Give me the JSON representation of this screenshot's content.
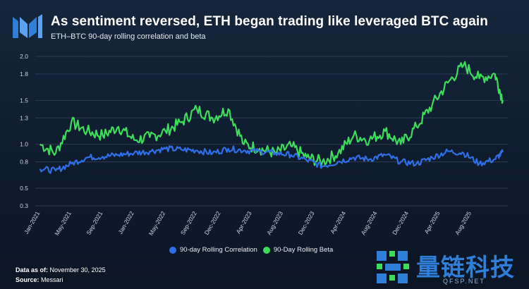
{
  "header": {
    "title": "As sentiment reversed, ETH began trading like leveraged BTC again",
    "subtitle": "ETH–BTC 90-day rolling correlation and beta"
  },
  "footer": {
    "data_as_of_label": "Data as of:",
    "data_as_of_value": "November 30, 2025",
    "source_label": "Source:",
    "source_value": "Messari"
  },
  "watermark": {
    "text": "量链科技",
    "sub": "QFSP.NET"
  },
  "colors": {
    "correlation": "#2f6fe6",
    "beta": "#3ddc5a",
    "grid": "#2b3c52",
    "brand": "#2f7fd8"
  },
  "chart_data": {
    "type": "line",
    "title": "As sentiment reversed, ETH began trading like leveraged BTC again",
    "subtitle": "ETH–BTC 90-day rolling correlation and beta",
    "xlabel": "",
    "ylabel": "",
    "ylim": [
      0.3,
      2.0
    ],
    "yticks": [
      0.3,
      0.5,
      0.8,
      1.0,
      1.3,
      1.5,
      1.8,
      2.0
    ],
    "xticks": [
      "Jan-2021",
      "May-2021",
      "Sep-2021",
      "Jan-2022",
      "May-2022",
      "Sep-2022",
      "Dec-2022",
      "Apr-2023",
      "Aug-2023",
      "Dec-2023",
      "Apr-2024",
      "Aug-2024",
      "Dec-2024",
      "Apr-2025",
      "Aug-2025"
    ],
    "x": [
      2021.0,
      2021.167,
      2021.333,
      2021.5,
      2021.667,
      2021.833,
      2022.0,
      2022.167,
      2022.333,
      2022.5,
      2022.667,
      2022.833,
      2023.0,
      2023.167,
      2023.333,
      2023.5,
      2023.667,
      2023.833,
      2024.0,
      2024.167,
      2024.333,
      2024.5,
      2024.667,
      2024.833,
      2025.0,
      2025.167,
      2025.333,
      2025.5,
      2025.667,
      2025.833,
      2025.917
    ],
    "series": [
      {
        "name": "90-day Rolling Correlation",
        "values": [
          0.72,
          0.7,
          0.78,
          0.85,
          0.86,
          0.88,
          0.9,
          0.92,
          0.95,
          0.94,
          0.93,
          0.9,
          0.95,
          0.93,
          0.92,
          0.9,
          0.88,
          0.82,
          0.75,
          0.8,
          0.85,
          0.83,
          0.88,
          0.8,
          0.78,
          0.85,
          0.92,
          0.9,
          0.78,
          0.83,
          0.91
        ]
      },
      {
        "name": "90-Day Rolling Beta",
        "values": [
          1.0,
          0.9,
          1.25,
          1.15,
          1.1,
          1.2,
          1.05,
          1.08,
          1.15,
          1.25,
          1.4,
          1.3,
          1.4,
          1.0,
          0.95,
          0.9,
          0.98,
          0.85,
          0.8,
          0.9,
          1.1,
          1.05,
          1.15,
          1.0,
          1.2,
          1.45,
          1.7,
          1.9,
          1.75,
          1.8,
          1.5
        ]
      }
    ],
    "grid": true,
    "legend": "bottom-center"
  }
}
